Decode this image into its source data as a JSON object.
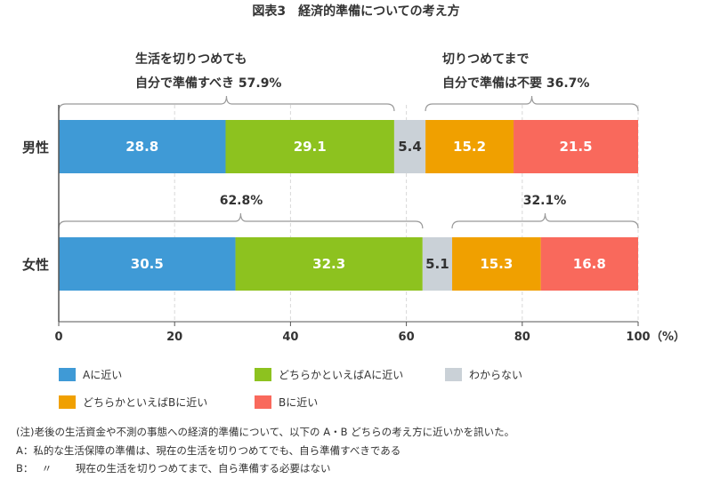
{
  "chart_data": {
    "type": "bar",
    "orientation": "horizontal",
    "stacked": true,
    "title": "図表3　経済的準備についての考え方",
    "categories": [
      "男性",
      "女性"
    ],
    "series": [
      {
        "name": "Aに近い",
        "color": "#3f9ad6",
        "values": [
          28.8,
          30.5
        ]
      },
      {
        "name": "どちらかといえばAに近い",
        "color": "#8dc21f",
        "values": [
          29.1,
          32.3
        ]
      },
      {
        "name": "わからない",
        "color": "#cad1d7",
        "values": [
          5.4,
          5.1
        ]
      },
      {
        "name": "どちらかといえばBに近い",
        "color": "#f0a000",
        "values": [
          15.2,
          15.3
        ]
      },
      {
        "name": "Bに近い",
        "color": "#f9695c",
        "values": [
          21.5,
          16.8
        ]
      }
    ],
    "xlim": [
      0,
      100
    ],
    "xticks": [
      0,
      20,
      40,
      60,
      80,
      100
    ],
    "xunit": "（%）",
    "grid": true,
    "legend_position": "bottom",
    "annotations": {
      "male_left": {
        "line1": "生活を切りつめても",
        "line2": "自分で準備すべき 57.9%",
        "range": [
          0,
          57.9
        ]
      },
      "male_right": {
        "line1": "切りつめてまで",
        "line2": "自分で準備は不要 36.7%",
        "range": [
          63.3,
          100
        ]
      },
      "female_left": {
        "text": "62.8%",
        "range": [
          0,
          62.8
        ]
      },
      "female_right": {
        "text": "32.1%",
        "range": [
          67.9,
          100
        ]
      }
    }
  },
  "notes": [
    "(注)老後の生活資金や不測の事態への経済的準備について、以下の A・B どちらの考え方に近いかを訊いた。",
    "A：私的な生活保障の準備は、現在の生活を切りつめてでも、自ら準備すべきである",
    "B：　 〃　　 現在の生活を切りつめてまで、自ら準備する必要はない"
  ]
}
